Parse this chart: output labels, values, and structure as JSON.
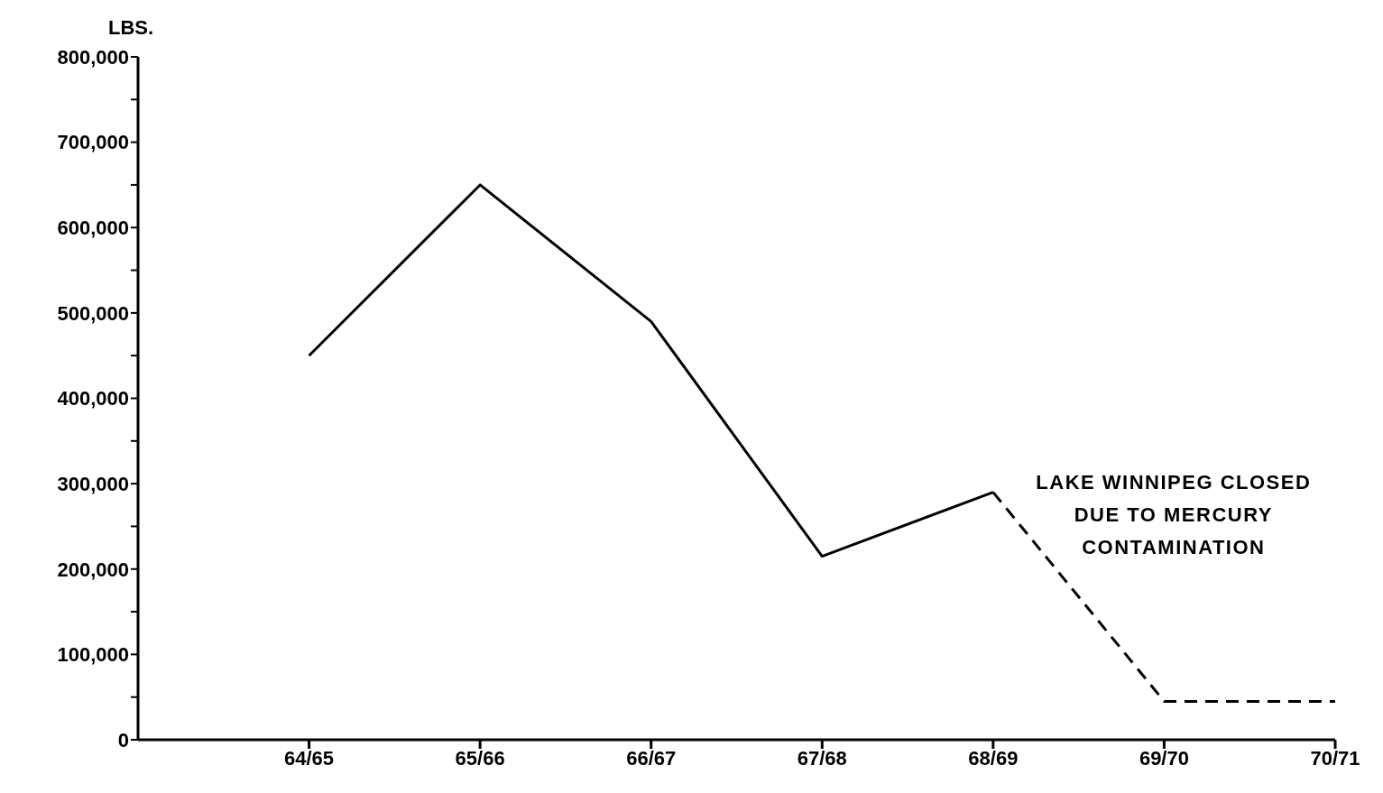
{
  "chart_data": {
    "type": "line",
    "ylabel": "LBS.",
    "categories": [
      "64/65",
      "65/66",
      "66/67",
      "67/68",
      "68/69",
      "69/70",
      "70/71"
    ],
    "series": [
      {
        "color": "#000000",
        "line_style": "solid",
        "values": [
          450000,
          650000,
          490000,
          215000,
          290000,
          null,
          null
        ]
      },
      {
        "color": "#000000",
        "line_style": "dashed",
        "values": [
          null,
          null,
          null,
          null,
          290000,
          45000,
          45000
        ]
      }
    ],
    "ylim": [
      0,
      800000
    ],
    "yticks": [
      0,
      {
        "value": 50000,
        "label": null
      },
      "100,000",
      {
        "value": 150000,
        "label": null
      },
      {
        "value": 200000,
        "label": "200,000"
      },
      {
        "value": 250000,
        "label": null
      },
      {
        "value": 300000,
        "label": "300,000"
      },
      {
        "value": 350000,
        "label": null
      },
      {
        "value": 400000,
        "label": "400,000"
      },
      {
        "value": 450000,
        "label": null
      },
      {
        "value": 500000,
        "label": "500,000"
      },
      {
        "value": 550000,
        "label": null
      },
      {
        "value": 600000,
        "label": "600,000"
      },
      {
        "value": 650000,
        "label": null
      },
      {
        "value": 700000,
        "label": "700,000"
      },
      {
        "value": 750000,
        "label": null
      },
      {
        "value": 800000,
        "label": "800,000"
      }
    ],
    "annotations": [
      {
        "text": "LAKE WINNIPEG CLOSED\nDUE TO MERCURY\nCONTAMINATION",
        "x": "68/69",
        "y": 290000
      }
    ],
    "grid": false,
    "legend": false,
    "marker": "none"
  }
}
